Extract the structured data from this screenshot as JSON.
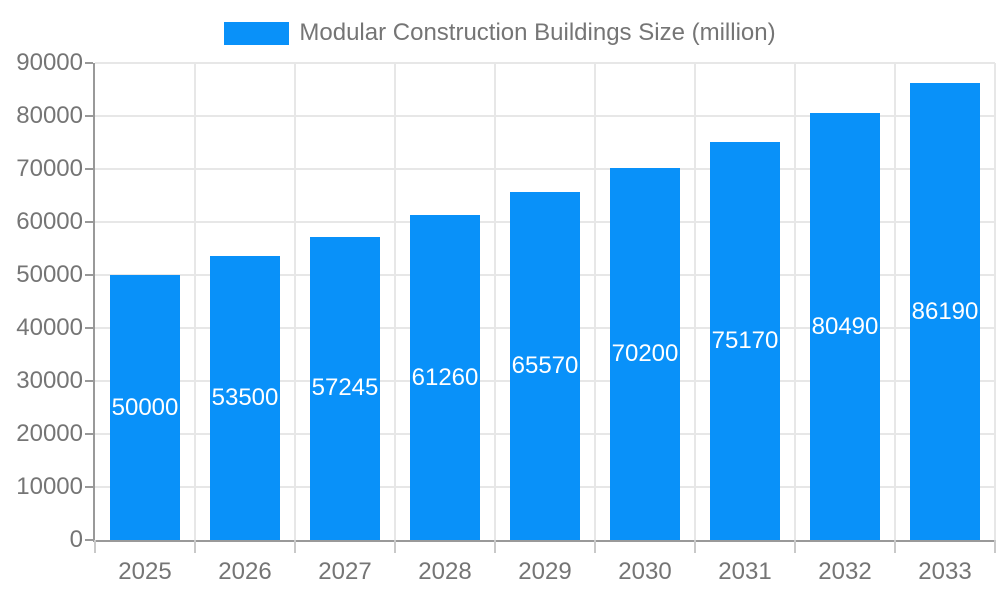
{
  "legend": {
    "label": "Modular Construction Buildings Size (million)",
    "swatch_color": "#0991f9"
  },
  "chart_data": {
    "type": "bar",
    "title": "Modular Construction Buildings Size (million)",
    "categories": [
      "2025",
      "2026",
      "2027",
      "2028",
      "2029",
      "2030",
      "2031",
      "2032",
      "2033"
    ],
    "values": [
      50000,
      53500,
      57245,
      61260,
      65570,
      70200,
      75170,
      80490,
      86190
    ],
    "bar_labels": [
      "50000",
      "53500",
      "57245",
      "61260",
      "65570",
      "70200",
      "75170",
      "80490",
      "86190"
    ],
    "xlabel": "",
    "ylabel": "",
    "ylim": [
      0,
      90000
    ],
    "y_tick_step": 10000,
    "y_tick_labels": [
      "0",
      "10000",
      "20000",
      "30000",
      "40000",
      "50000",
      "60000",
      "70000",
      "80000",
      "90000"
    ],
    "grid": true,
    "legend_position": "top",
    "bar_color": "#0991f9",
    "value_label_color": "#ffffff"
  },
  "style": {
    "axis_line_color": "#999999",
    "grid_color": "#e7e7e7",
    "x_tick_color": "#c9c9c9",
    "axis_text_color": "#757575",
    "background": "#ffffff"
  }
}
